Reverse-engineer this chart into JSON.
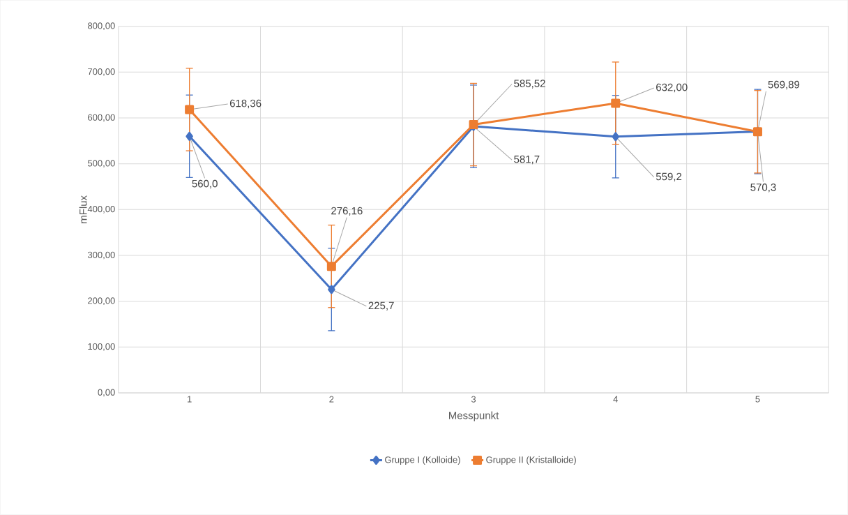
{
  "chart_data": {
    "type": "line",
    "xlabel": "Messpunkt",
    "ylabel": "mFlux",
    "categories": [
      "1",
      "2",
      "3",
      "4",
      "5"
    ],
    "series": [
      {
        "name": "Gruppe I (Kolloide)",
        "color": "#4472c4",
        "marker": "diamond",
        "values": [
          560.0,
          225.7,
          581.7,
          559.2,
          570.3
        ],
        "errors": [
          90,
          90,
          90,
          90,
          92
        ],
        "value_labels": [
          "560,0",
          "225,7",
          "581,7",
          "559,2",
          "570,3"
        ]
      },
      {
        "name": "Gruppe II (Kristalloide)",
        "color": "#ed7d31",
        "marker": "square",
        "values": [
          618.36,
          276.16,
          585.52,
          632.0,
          569.89
        ],
        "errors": [
          90,
          90,
          90,
          90,
          90
        ],
        "value_labels": [
          "618,36",
          "276,16",
          "585,52",
          "632,00",
          "569,89"
        ]
      }
    ],
    "ylim": [
      0,
      800
    ],
    "yticks": [
      {
        "value": 0,
        "label": "0,00"
      },
      {
        "value": 100,
        "label": "100,00"
      },
      {
        "value": 200,
        "label": "200,00"
      },
      {
        "value": 300,
        "label": "300,00"
      },
      {
        "value": 400,
        "label": "400,00"
      },
      {
        "value": 500,
        "label": "500,00"
      },
      {
        "value": 600,
        "label": "600,00"
      },
      {
        "value": 700,
        "label": "700,00"
      },
      {
        "value": 800,
        "label": "800,00"
      }
    ],
    "grid": true,
    "legend": "bottom",
    "line_style": "solid"
  }
}
